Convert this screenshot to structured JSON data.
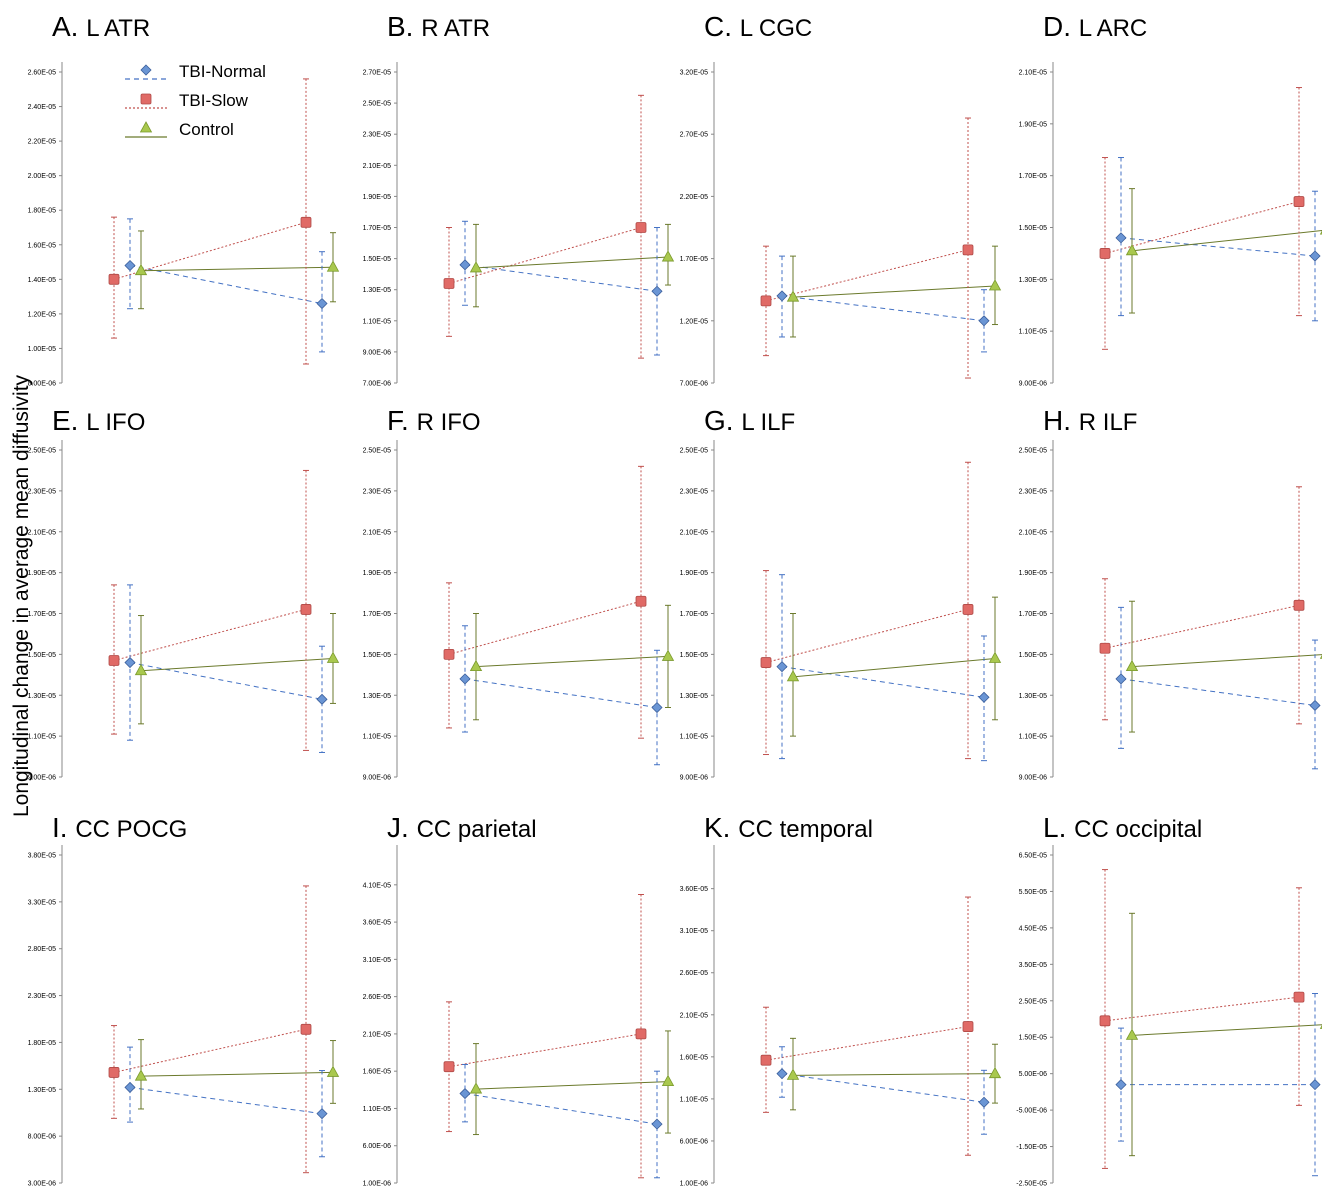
{
  "figure": {
    "ylabel": "Longitudinal change in average mean diffusivity",
    "legend": [
      {
        "name": "TBI-Normal",
        "color": "#4472C4",
        "marker": "diamond",
        "dash": "dashed"
      },
      {
        "name": "TBI-Slow",
        "color": "#C0504D",
        "marker": "square",
        "dash": "dotted"
      },
      {
        "name": "Control",
        "color": "#9BBB59",
        "marker": "triangle",
        "dash": "solid"
      }
    ],
    "colors": {
      "tbi_normal_fill": "#6A95D4",
      "tbi_normal_line": "#4472C4",
      "tbi_slow_fill": "#E06A66",
      "tbi_slow_line": "#C0504D",
      "control_fill": "#A9C84E",
      "control_line": "#6B7A2C",
      "axis": "#888888"
    }
  },
  "chart_data": [
    {
      "type": "line",
      "letter": "A.",
      "title": "L ATR",
      "ylim": [
        8e-06,
        2.6e-05
      ],
      "ticks": [
        "8.00E-06",
        "1.00E-05",
        "1.20E-05",
        "1.40E-05",
        "1.60E-05",
        "1.80E-05",
        "2.00E-05",
        "2.20E-05",
        "2.40E-05",
        "2.60E-05"
      ],
      "series": [
        {
          "name": "TBI-Normal",
          "values": [
            1.48e-05,
            1.26e-05
          ],
          "errors": [
            [
              1.23e-05,
              1.75e-05
            ],
            [
              9.8e-06,
              1.56e-05
            ]
          ]
        },
        {
          "name": "TBI-Slow",
          "values": [
            1.4e-05,
            1.73e-05
          ],
          "errors": [
            [
              1.06e-05,
              1.76e-05
            ],
            [
              9.1e-06,
              2.56e-05
            ]
          ]
        },
        {
          "name": "Control",
          "values": [
            1.45e-05,
            1.47e-05
          ],
          "errors": [
            [
              1.23e-05,
              1.68e-05
            ],
            [
              1.27e-05,
              1.67e-05
            ]
          ]
        }
      ]
    },
    {
      "type": "line",
      "letter": "B.",
      "title": "R ATR",
      "ylim": [
        7e-06,
        2.7e-05
      ],
      "ticks": [
        "7.00E-06",
        "9.00E-06",
        "1.10E-05",
        "1.30E-05",
        "1.50E-05",
        "1.70E-05",
        "1.90E-05",
        "2.10E-05",
        "2.30E-05",
        "2.50E-05",
        "2.70E-05"
      ],
      "series": [
        {
          "name": "TBI-Normal",
          "values": [
            1.46e-05,
            1.29e-05
          ],
          "errors": [
            [
              1.2e-05,
              1.74e-05
            ],
            [
              8.8e-06,
              1.7e-05
            ]
          ]
        },
        {
          "name": "TBI-Slow",
          "values": [
            1.34e-05,
            1.7e-05
          ],
          "errors": [
            [
              1e-05,
              1.7e-05
            ],
            [
              8.6e-06,
              2.55e-05
            ]
          ]
        },
        {
          "name": "Control",
          "values": [
            1.44e-05,
            1.51e-05
          ],
          "errors": [
            [
              1.19e-05,
              1.72e-05
            ],
            [
              1.33e-05,
              1.72e-05
            ]
          ]
        }
      ]
    },
    {
      "type": "line",
      "letter": "C.",
      "title": "L CGC",
      "ylim": [
        7e-06,
        3.2e-05
      ],
      "ticks": [
        "7.00E-06",
        "1.20E-05",
        "1.70E-05",
        "2.20E-05",
        "2.70E-05",
        "3.20E-05"
      ],
      "series": [
        {
          "name": "TBI-Normal",
          "values": [
            1.4e-05,
            1.2e-05
          ],
          "errors": [
            [
              1.07e-05,
              1.72e-05
            ],
            [
              9.5e-06,
              1.45e-05
            ]
          ]
        },
        {
          "name": "TBI-Slow",
          "values": [
            1.36e-05,
            1.77e-05
          ],
          "errors": [
            [
              9.2e-06,
              1.8e-05
            ],
            [
              7.4e-06,
              2.83e-05
            ]
          ]
        },
        {
          "name": "Control",
          "values": [
            1.39e-05,
            1.48e-05
          ],
          "errors": [
            [
              1.07e-05,
              1.72e-05
            ],
            [
              1.17e-05,
              1.8e-05
            ]
          ]
        }
      ]
    },
    {
      "type": "line",
      "letter": "D.",
      "title": "L ARC",
      "ylim": [
        9e-06,
        2.1e-05
      ],
      "ticks": [
        "9.00E-06",
        "1.10E-05",
        "1.30E-05",
        "1.50E-05",
        "1.70E-05",
        "1.90E-05",
        "2.10E-05"
      ],
      "series": [
        {
          "name": "TBI-Normal",
          "values": [
            1.46e-05,
            1.39e-05
          ],
          "errors": [
            [
              1.16e-05,
              1.77e-05
            ],
            [
              1.14e-05,
              1.64e-05
            ]
          ]
        },
        {
          "name": "TBI-Slow",
          "values": [
            1.4e-05,
            1.6e-05
          ],
          "errors": [
            [
              1.03e-05,
              1.77e-05
            ],
            [
              1.16e-05,
              2.04e-05
            ]
          ]
        },
        {
          "name": "Control",
          "values": [
            1.41e-05,
            1.49e-05
          ],
          "errors": [
            [
              1.17e-05,
              1.65e-05
            ],
            [
              1.23e-05,
              1.74e-05
            ]
          ]
        }
      ]
    },
    {
      "type": "line",
      "letter": "E.",
      "title": "L IFO",
      "ylim": [
        9e-06,
        2.5e-05
      ],
      "ticks": [
        "9.00E-06",
        "1.10E-05",
        "1.30E-05",
        "1.50E-05",
        "1.70E-05",
        "1.90E-05",
        "2.10E-05",
        "2.30E-05",
        "2.50E-05"
      ],
      "series": [
        {
          "name": "TBI-Normal",
          "values": [
            1.46e-05,
            1.28e-05
          ],
          "errors": [
            [
              1.08e-05,
              1.84e-05
            ],
            [
              1.02e-05,
              1.54e-05
            ]
          ]
        },
        {
          "name": "TBI-Slow",
          "values": [
            1.47e-05,
            1.72e-05
          ],
          "errors": [
            [
              1.11e-05,
              1.84e-05
            ],
            [
              1.03e-05,
              2.4e-05
            ]
          ]
        },
        {
          "name": "Control",
          "values": [
            1.42e-05,
            1.48e-05
          ],
          "errors": [
            [
              1.16e-05,
              1.69e-05
            ],
            [
              1.26e-05,
              1.7e-05
            ]
          ]
        }
      ]
    },
    {
      "type": "line",
      "letter": "F.",
      "title": "R IFO",
      "ylim": [
        9e-06,
        2.5e-05
      ],
      "ticks": [
        "9.00E-06",
        "1.10E-05",
        "1.30E-05",
        "1.50E-05",
        "1.70E-05",
        "1.90E-05",
        "2.10E-05",
        "2.30E-05",
        "2.50E-05"
      ],
      "series": [
        {
          "name": "TBI-Normal",
          "values": [
            1.38e-05,
            1.24e-05
          ],
          "errors": [
            [
              1.12e-05,
              1.64e-05
            ],
            [
              9.6e-06,
              1.52e-05
            ]
          ]
        },
        {
          "name": "TBI-Slow",
          "values": [
            1.5e-05,
            1.76e-05
          ],
          "errors": [
            [
              1.14e-05,
              1.85e-05
            ],
            [
              1.09e-05,
              2.42e-05
            ]
          ]
        },
        {
          "name": "Control",
          "values": [
            1.44e-05,
            1.49e-05
          ],
          "errors": [
            [
              1.18e-05,
              1.7e-05
            ],
            [
              1.24e-05,
              1.74e-05
            ]
          ]
        }
      ]
    },
    {
      "type": "line",
      "letter": "G.",
      "title": "L ILF",
      "ylim": [
        9e-06,
        2.5e-05
      ],
      "ticks": [
        "9.00E-06",
        "1.10E-05",
        "1.30E-05",
        "1.50E-05",
        "1.70E-05",
        "1.90E-05",
        "2.10E-05",
        "2.30E-05",
        "2.50E-05"
      ],
      "series": [
        {
          "name": "TBI-Normal",
          "values": [
            1.44e-05,
            1.29e-05
          ],
          "errors": [
            [
              9.9e-06,
              1.89e-05
            ],
            [
              9.8e-06,
              1.59e-05
            ]
          ]
        },
        {
          "name": "TBI-Slow",
          "values": [
            1.46e-05,
            1.72e-05
          ],
          "errors": [
            [
              1.01e-05,
              1.91e-05
            ],
            [
              9.9e-06,
              2.44e-05
            ]
          ]
        },
        {
          "name": "Control",
          "values": [
            1.39e-05,
            1.48e-05
          ],
          "errors": [
            [
              1.1e-05,
              1.7e-05
            ],
            [
              1.18e-05,
              1.78e-05
            ]
          ]
        }
      ]
    },
    {
      "type": "line",
      "letter": "H.",
      "title": "R ILF",
      "ylim": [
        9e-06,
        2.5e-05
      ],
      "ticks": [
        "9.00E-06",
        "1.10E-05",
        "1.30E-05",
        "1.50E-05",
        "1.70E-05",
        "1.90E-05",
        "2.10E-05",
        "2.30E-05",
        "2.50E-05"
      ],
      "series": [
        {
          "name": "TBI-Normal",
          "values": [
            1.38e-05,
            1.25e-05
          ],
          "errors": [
            [
              1.04e-05,
              1.73e-05
            ],
            [
              9.4e-06,
              1.57e-05
            ]
          ]
        },
        {
          "name": "TBI-Slow",
          "values": [
            1.53e-05,
            1.74e-05
          ],
          "errors": [
            [
              1.18e-05,
              1.87e-05
            ],
            [
              1.16e-05,
              2.32e-05
            ]
          ]
        },
        {
          "name": "Control",
          "values": [
            1.44e-05,
            1.5e-05
          ],
          "errors": [
            [
              1.12e-05,
              1.76e-05
            ],
            [
              1.2e-05,
              1.78e-05
            ]
          ]
        }
      ]
    },
    {
      "type": "line",
      "letter": "I.",
      "title": "CC POCG",
      "ylim": [
        3e-06,
        3.8e-05
      ],
      "ticks": [
        "3.00E-06",
        "8.00E-06",
        "1.30E-05",
        "1.80E-05",
        "2.30E-05",
        "2.80E-05",
        "3.30E-05",
        "3.80E-05"
      ],
      "series": [
        {
          "name": "TBI-Normal",
          "values": [
            1.32e-05,
            1.04e-05
          ],
          "errors": [
            [
              9.5e-06,
              1.75e-05
            ],
            [
              5.8e-06,
              1.5e-05
            ]
          ]
        },
        {
          "name": "TBI-Slow",
          "values": [
            1.48e-05,
            1.94e-05
          ],
          "errors": [
            [
              9.9e-06,
              1.98e-05
            ],
            [
              4.1e-06,
              3.47e-05
            ]
          ]
        },
        {
          "name": "Control",
          "values": [
            1.44e-05,
            1.48e-05
          ],
          "errors": [
            [
              1.09e-05,
              1.83e-05
            ],
            [
              1.15e-05,
              1.82e-05
            ]
          ]
        }
      ]
    },
    {
      "type": "line",
      "letter": "J.",
      "title": "CC parietal",
      "ylim": [
        1e-06,
        4.5e-05
      ],
      "ticks": [
        "1.00E-06",
        "6.00E-06",
        "1.10E-05",
        "1.60E-05",
        "2.10E-05",
        "2.60E-05",
        "3.10E-05",
        "3.60E-05",
        "4.10E-05"
      ],
      "series": [
        {
          "name": "TBI-Normal",
          "values": [
            1.3e-05,
            8.9e-06
          ],
          "errors": [
            [
              9.2e-06,
              1.69e-05
            ],
            [
              1.7e-06,
              1.6e-05
            ]
          ]
        },
        {
          "name": "TBI-Slow",
          "values": [
            1.66e-05,
            2.1e-05
          ],
          "errors": [
            [
              7.9e-06,
              2.53e-05
            ],
            [
              1.7e-06,
              3.97e-05
            ]
          ]
        },
        {
          "name": "Control",
          "values": [
            1.36e-05,
            1.46e-05
          ],
          "errors": [
            [
              7.5e-06,
              1.97e-05
            ],
            [
              7.7e-06,
              2.14e-05
            ]
          ]
        }
      ]
    },
    {
      "type": "line",
      "letter": "K.",
      "title": "CC temporal",
      "ylim": [
        1e-06,
        4e-05
      ],
      "ticks": [
        "1.00E-06",
        "6.00E-06",
        "1.10E-05",
        "1.60E-05",
        "2.10E-05",
        "2.60E-05",
        "3.10E-05",
        "3.60E-05"
      ],
      "series": [
        {
          "name": "TBI-Normal",
          "values": [
            1.4e-05,
            1.06e-05
          ],
          "errors": [
            [
              1.12e-05,
              1.72e-05
            ],
            [
              6.8e-06,
              1.44e-05
            ]
          ]
        },
        {
          "name": "TBI-Slow",
          "values": [
            1.56e-05,
            1.96e-05
          ],
          "errors": [
            [
              9.4e-06,
              2.19e-05
            ],
            [
              4.3e-06,
              3.5e-05
            ]
          ]
        },
        {
          "name": "Control",
          "values": [
            1.38e-05,
            1.4e-05
          ],
          "errors": [
            [
              9.7e-06,
              1.82e-05
            ],
            [
              1.05e-05,
              1.75e-05
            ]
          ]
        }
      ]
    },
    {
      "type": "line",
      "letter": "L.",
      "title": "CC occipital",
      "ylim": [
        -2.5e-05,
        6.5e-05
      ],
      "ticks": [
        "-2.50E-05",
        "-1.50E-05",
        "-5.00E-06",
        "5.00E-06",
        "1.50E-05",
        "2.50E-05",
        "3.50E-05",
        "4.50E-05",
        "5.50E-05",
        "6.50E-05"
      ],
      "series": [
        {
          "name": "TBI-Normal",
          "values": [
            2e-06,
            2e-06
          ],
          "errors": [
            [
              -1.35e-05,
              1.75e-05
            ],
            [
              -2.3e-05,
              2.7e-05
            ]
          ]
        },
        {
          "name": "TBI-Slow",
          "values": [
            1.95e-05,
            2.6e-05
          ],
          "errors": [
            [
              -2.1e-05,
              6.1e-05
            ],
            [
              -3.7e-06,
              5.6e-05
            ]
          ]
        },
        {
          "name": "Control",
          "values": [
            1.55e-05,
            1.85e-05
          ],
          "errors": [
            [
              -1.75e-05,
              4.9e-05
            ],
            [
              1.8e-06,
              3.9e-05
            ]
          ]
        }
      ]
    }
  ]
}
